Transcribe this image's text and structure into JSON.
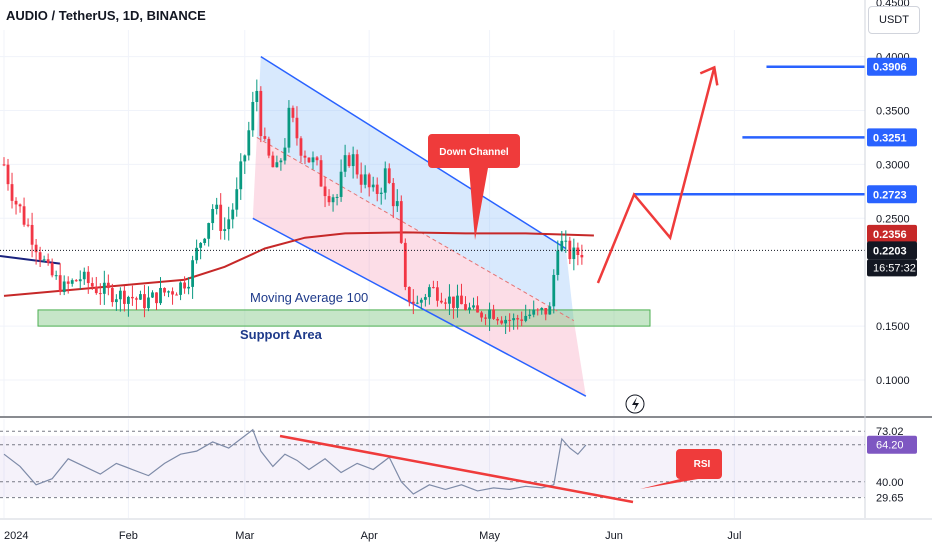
{
  "header": {
    "title": "AUDIO / TetherUS, 1D, BINANCE",
    "currency": "USDT"
  },
  "chart_data": {
    "type": "candlestick",
    "title": "AUDIO / TetherUS, 1D, BINANCE",
    "price_axis": {
      "ylim": [
        0.075,
        0.525
      ],
      "ticks": [
        "0.4500",
        "0.4000",
        "0.3500",
        "0.3000",
        "0.2500",
        "0.1500",
        "0.1000"
      ]
    },
    "time_axis": {
      "labels": [
        {
          "label": "2024",
          "day": 0
        },
        {
          "label": "Feb",
          "day": 31
        },
        {
          "label": "Mar",
          "day": 60
        },
        {
          "label": "Apr",
          "day": 91
        },
        {
          "label": "May",
          "day": 121
        },
        {
          "label": "Jun",
          "day": 152
        },
        {
          "label": "Jul",
          "day": 182
        }
      ]
    },
    "price_labels": [
      {
        "value": "0.3906",
        "color": "#2962ff"
      },
      {
        "value": "0.3251",
        "color": "#2962ff"
      },
      {
        "value": "0.2723",
        "color": "#2962ff"
      },
      {
        "value": "0.2356",
        "color": "#c62828"
      },
      {
        "value": "0.2203",
        "color": "#131722"
      }
    ],
    "countdown": "16:57:32",
    "last_price": 0.2203,
    "ma100_value": 0.2356,
    "target_levels": [
      0.2723,
      0.3251,
      0.3906
    ],
    "annotations": {
      "down_channel": "Down Channel",
      "moving_average": "Moving Average 100",
      "support": "Support Area",
      "rsi": "RSI"
    },
    "support_area": [
      0.15,
      0.165
    ],
    "channel": {
      "upper": [
        {
          "day": 64,
          "price": 0.4
        },
        {
          "day": 140,
          "price": 0.222
        }
      ],
      "lower": [
        {
          "day": 62,
          "price": 0.25
        },
        {
          "day": 145,
          "price": 0.085
        }
      ],
      "mid": [
        {
          "day": 63,
          "price": 0.325
        },
        {
          "day": 142,
          "price": 0.155
        }
      ]
    },
    "projection": [
      {
        "day": 148,
        "price": 0.19
      },
      {
        "day": 157,
        "price": 0.272
      },
      {
        "day": 166,
        "price": 0.232
      },
      {
        "day": 177,
        "price": 0.39
      }
    ],
    "ma100": [
      [
        0,
        0.178
      ],
      [
        15,
        0.183
      ],
      [
        30,
        0.188
      ],
      [
        45,
        0.193
      ],
      [
        55,
        0.205
      ],
      [
        65,
        0.222
      ],
      [
        75,
        0.232
      ],
      [
        85,
        0.236
      ],
      [
        100,
        0.237
      ],
      [
        115,
        0.236
      ],
      [
        130,
        0.236
      ],
      [
        147,
        0.234
      ]
    ],
    "price_series": [
      [
        0,
        0.3
      ],
      [
        3,
        0.265
      ],
      [
        7,
        0.235
      ],
      [
        11,
        0.2
      ],
      [
        15,
        0.185
      ],
      [
        19,
        0.195
      ],
      [
        23,
        0.185
      ],
      [
        27,
        0.18
      ],
      [
        31,
        0.178
      ],
      [
        35,
        0.172
      ],
      [
        39,
        0.18
      ],
      [
        43,
        0.185
      ],
      [
        46,
        0.195
      ],
      [
        49,
        0.23
      ],
      [
        52,
        0.26
      ],
      [
        55,
        0.24
      ],
      [
        58,
        0.27
      ],
      [
        61,
        0.33
      ],
      [
        63,
        0.37
      ],
      [
        65,
        0.31
      ],
      [
        68,
        0.29
      ],
      [
        71,
        0.34
      ],
      [
        74,
        0.32
      ],
      [
        77,
        0.3
      ],
      [
        80,
        0.28
      ],
      [
        83,
        0.27
      ],
      [
        86,
        0.31
      ],
      [
        89,
        0.29
      ],
      [
        92,
        0.27
      ],
      [
        95,
        0.29
      ],
      [
        98,
        0.26
      ],
      [
        100,
        0.18
      ],
      [
        103,
        0.17
      ],
      [
        106,
        0.185
      ],
      [
        109,
        0.18
      ],
      [
        112,
        0.172
      ],
      [
        115,
        0.168
      ],
      [
        118,
        0.16
      ],
      [
        121,
        0.165
      ],
      [
        124,
        0.158
      ],
      [
        127,
        0.155
      ],
      [
        130,
        0.16
      ],
      [
        133,
        0.162
      ],
      [
        136,
        0.165
      ],
      [
        138,
        0.23
      ],
      [
        140,
        0.22
      ],
      [
        142,
        0.215
      ],
      [
        144,
        0.2203
      ]
    ],
    "rsi": {
      "ylim": [
        15,
        90
      ],
      "levels": [
        "73.02",
        "64.20",
        "40.00",
        "29.65"
      ],
      "current": "64.20",
      "series": [
        [
          0,
          58
        ],
        [
          4,
          50
        ],
        [
          8,
          38
        ],
        [
          12,
          42
        ],
        [
          16,
          55
        ],
        [
          20,
          50
        ],
        [
          24,
          45
        ],
        [
          28,
          52
        ],
        [
          32,
          48
        ],
        [
          36,
          44
        ],
        [
          40,
          52
        ],
        [
          44,
          58
        ],
        [
          48,
          60
        ],
        [
          52,
          66
        ],
        [
          56,
          62
        ],
        [
          60,
          70
        ],
        [
          62,
          74
        ],
        [
          64,
          60
        ],
        [
          67,
          50
        ],
        [
          70,
          58
        ],
        [
          73,
          54
        ],
        [
          76,
          48
        ],
        [
          80,
          55
        ],
        [
          84,
          46
        ],
        [
          88,
          52
        ],
        [
          92,
          48
        ],
        [
          96,
          56
        ],
        [
          99,
          40
        ],
        [
          102,
          32
        ],
        [
          106,
          38
        ],
        [
          110,
          35
        ],
        [
          114,
          38
        ],
        [
          118,
          34
        ],
        [
          122,
          36
        ],
        [
          126,
          35
        ],
        [
          130,
          37
        ],
        [
          134,
          36
        ],
        [
          137,
          38
        ],
        [
          139,
          68
        ],
        [
          141,
          62
        ],
        [
          143,
          58
        ],
        [
          145,
          64
        ]
      ]
    }
  }
}
